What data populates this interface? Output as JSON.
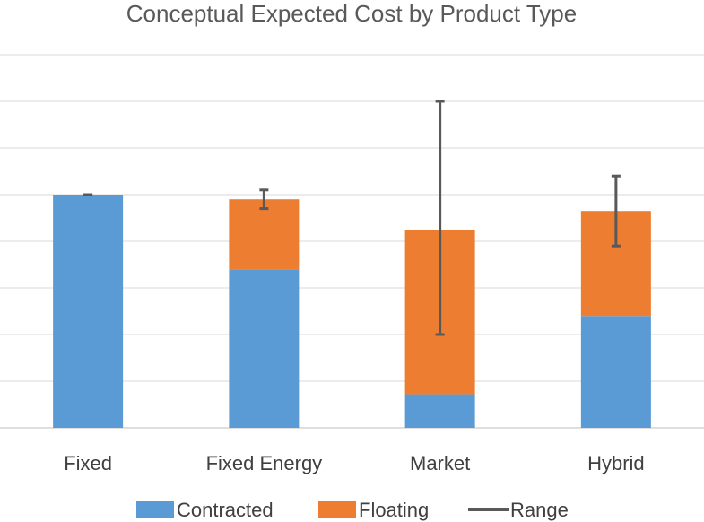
{
  "chart_data": {
    "type": "bar",
    "stacked": true,
    "title": "Conceptual Expected Cost by Product Type",
    "xlabel": "",
    "ylabel": "",
    "ylim": [
      0,
      8
    ],
    "grid": true,
    "y_tick_labels_shown": false,
    "legend_position": "bottom",
    "categories": [
      "Fixed",
      "Fixed Energy",
      "Market",
      "Hybrid"
    ],
    "series": [
      {
        "name": "Contracted",
        "color": "#5b9bd5",
        "values": [
          5.0,
          3.4,
          0.72,
          2.4
        ]
      },
      {
        "name": "Floating",
        "color": "#ed7d31",
        "values": [
          0.0,
          1.5,
          3.53,
          2.25
        ]
      }
    ],
    "range": {
      "name": "Range",
      "color": "#595959",
      "low": [
        5.0,
        4.7,
        2.0,
        3.9
      ],
      "high": [
        5.0,
        5.1,
        7.0,
        5.4
      ]
    }
  }
}
